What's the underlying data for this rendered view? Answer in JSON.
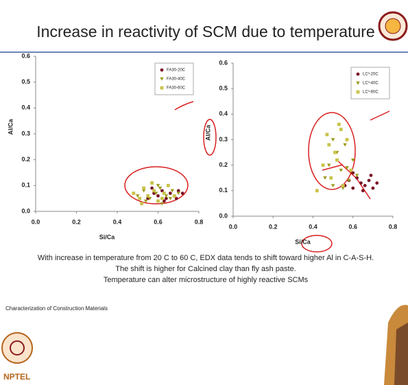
{
  "slide": {
    "title": "Increase in reactivity of SCM due to temperature",
    "caption": [
      "With increase in temperature from 20 C to 60 C, EDX data tends to shift toward higher Al in C-A-S-H.",
      "The shift is higher for Calcined clay than fly ash paste.",
      "Temperature can alter microstructure of highly reactive SCMs"
    ],
    "footer": "Characterization of Construction Materials",
    "logo_text": "NPTEL"
  },
  "chart_data": [
    {
      "type": "scatter",
      "xlabel": "Si/Ca",
      "ylabel": "Al/Ca",
      "xlim": [
        0,
        0.8
      ],
      "ylim": [
        0,
        0.6
      ],
      "xticks": [
        {
          "value": 0,
          "label": "0.0"
        },
        0.2,
        0.4,
        0.6,
        0.8
      ],
      "yticks": [
        {
          "value": 0,
          "label": "0.0"
        },
        0.1,
        0.2,
        0.3,
        0.4,
        0.5,
        0.6
      ],
      "series": [
        {
          "name": "FA30-20C",
          "color": "#7a1426",
          "marker": "circle",
          "x": [
            0.55,
            0.58,
            0.6,
            0.62,
            0.64,
            0.66,
            0.68,
            0.7,
            0.72,
            0.63,
            0.57,
            0.69
          ],
          "values": [
            0.05,
            0.07,
            0.06,
            0.08,
            0.05,
            0.07,
            0.06,
            0.08,
            0.07,
            0.04,
            0.09,
            0.05
          ]
        },
        {
          "name": "FA30-40C",
          "color": "#9c9a1c",
          "marker": "triangle",
          "x": [
            0.5,
            0.53,
            0.56,
            0.59,
            0.61,
            0.64,
            0.67,
            0.7,
            0.54,
            0.6,
            0.66,
            0.62
          ],
          "values": [
            0.06,
            0.08,
            0.05,
            0.07,
            0.09,
            0.06,
            0.08,
            0.07,
            0.04,
            0.1,
            0.05,
            0.03
          ]
        },
        {
          "name": "FA30-60C",
          "color": "#c9c24a",
          "marker": "square",
          "x": [
            0.48,
            0.51,
            0.53,
            0.55,
            0.58,
            0.6,
            0.63,
            0.65,
            0.68,
            0.52,
            0.57,
            0.62
          ],
          "values": [
            0.07,
            0.05,
            0.09,
            0.06,
            0.08,
            0.04,
            0.07,
            0.1,
            0.06,
            0.03,
            0.11,
            0.05
          ]
        }
      ]
    },
    {
      "type": "scatter",
      "xlabel": "Si/Ca",
      "ylabel": "Al/Ca",
      "xlim": [
        0,
        0.8
      ],
      "ylim": [
        0,
        0.6
      ],
      "xticks": [
        {
          "value": 0,
          "label": "0.0"
        },
        0.2,
        0.4,
        0.6,
        0.8
      ],
      "yticks": [
        {
          "value": 0,
          "label": "0.0"
        },
        0.1,
        0.2,
        0.3,
        0.4,
        0.5,
        0.6
      ],
      "series": [
        {
          "name": "LC³-20C",
          "color": "#7a1426",
          "marker": "circle",
          "x": [
            0.56,
            0.58,
            0.6,
            0.62,
            0.64,
            0.66,
            0.68,
            0.7,
            0.72,
            0.6,
            0.65,
            0.69
          ],
          "values": [
            0.12,
            0.14,
            0.11,
            0.15,
            0.13,
            0.12,
            0.14,
            0.11,
            0.13,
            0.17,
            0.1,
            0.16
          ]
        },
        {
          "name": "LC³-40C",
          "color": "#9c9a1c",
          "marker": "triangle",
          "x": [
            0.46,
            0.48,
            0.5,
            0.52,
            0.54,
            0.56,
            0.58,
            0.6,
            0.62,
            0.5,
            0.55,
            0.57
          ],
          "values": [
            0.15,
            0.2,
            0.12,
            0.25,
            0.18,
            0.28,
            0.14,
            0.22,
            0.16,
            0.3,
            0.11,
            0.19
          ]
        },
        {
          "name": "LC³-60C",
          "color": "#c9c24a",
          "marker": "square",
          "x": [
            0.42,
            0.45,
            0.47,
            0.49,
            0.51,
            0.53,
            0.55,
            0.57,
            0.59,
            0.48,
            0.52,
            0.54
          ],
          "values": [
            0.1,
            0.2,
            0.32,
            0.15,
            0.25,
            0.36,
            0.12,
            0.3,
            0.18,
            0.28,
            0.22,
            0.34
          ]
        }
      ]
    }
  ]
}
